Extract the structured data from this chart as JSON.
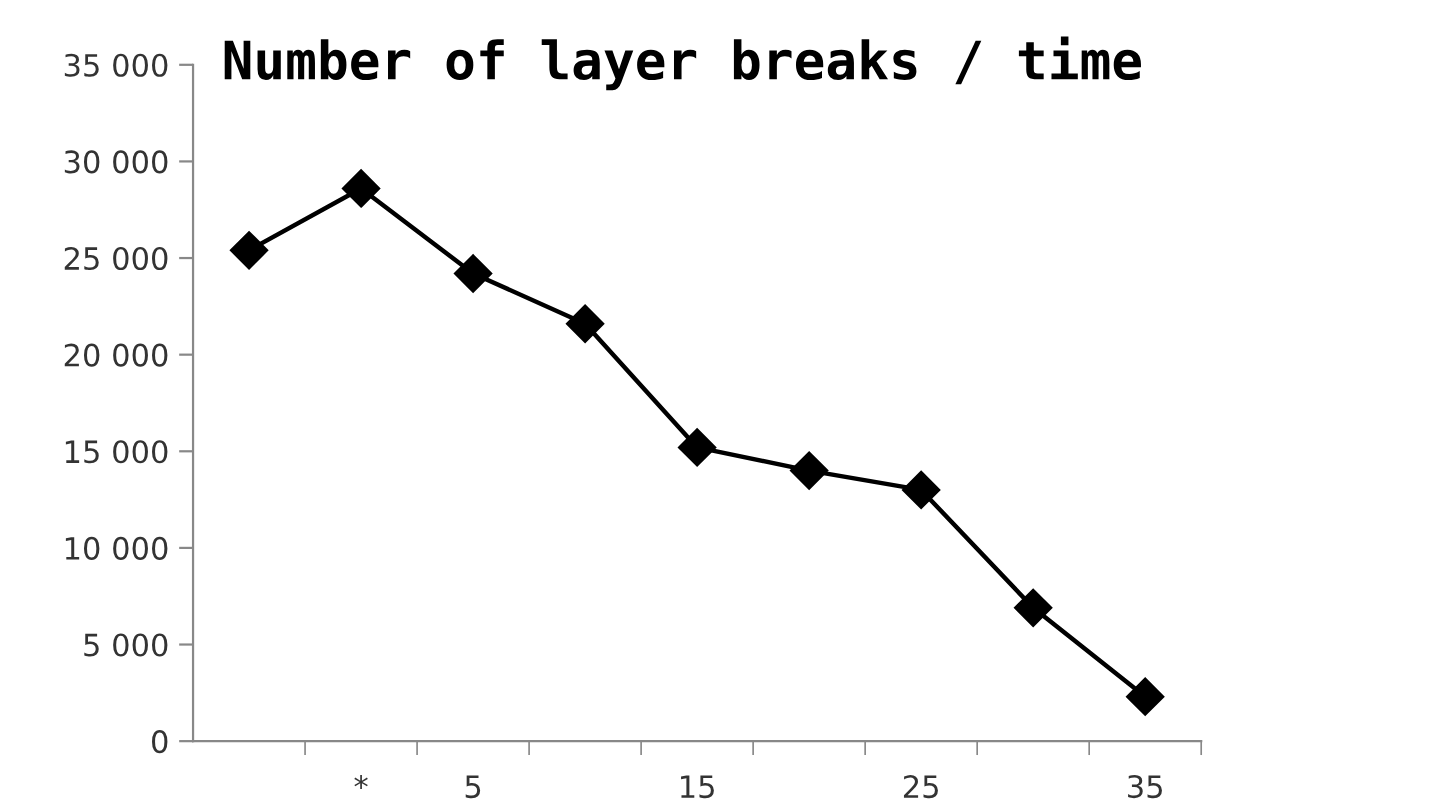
{
  "chart_data": {
    "type": "line",
    "title": "Number of layer breaks / time",
    "categories": [
      null,
      "*",
      "5",
      null,
      "15",
      null,
      "25",
      null,
      "35"
    ],
    "series": [
      {
        "color": "#000000",
        "values": [
          25400,
          28600,
          24200,
          21600,
          15200,
          14000,
          13000,
          6900,
          2300
        ]
      }
    ],
    "ylim": [
      0,
      35000
    ],
    "yticks": [
      {
        "value": 0,
        "label": "0"
      },
      {
        "value": 5000,
        "label": "5 000"
      },
      {
        "value": 10000,
        "label": "10 000"
      },
      {
        "value": 15000,
        "label": "15 000"
      },
      {
        "value": 20000,
        "label": "20 000"
      },
      {
        "value": 25000,
        "label": "25 000"
      },
      {
        "value": 30000,
        "label": "30 000"
      },
      {
        "value": 35000,
        "label": "35 000"
      }
    ],
    "marker": "diamond",
    "line_style": "solid",
    "grid": false,
    "legend": false
  }
}
